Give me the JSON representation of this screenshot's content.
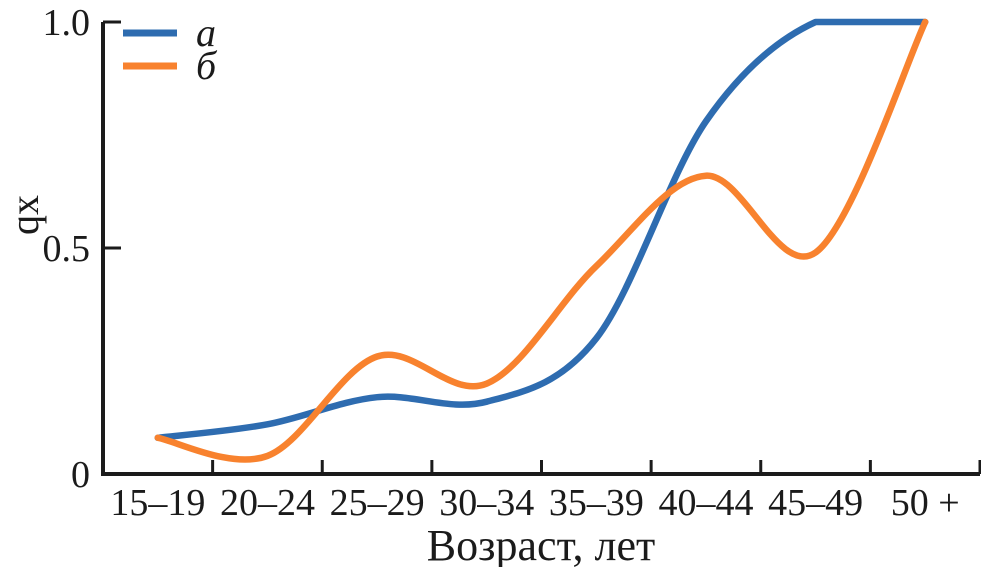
{
  "chart_data": {
    "type": "line",
    "title": "",
    "xlabel": "Возраст, лет",
    "ylabel": "qx",
    "categories": [
      "15–19",
      "20–24",
      "25–29",
      "30–34",
      "35–39",
      "40–44",
      "45–49",
      "50 +"
    ],
    "ylim": [
      0,
      1.0
    ],
    "y_ticks": [
      {
        "value": 0,
        "label": "0"
      },
      {
        "value": 0.5,
        "label": "0.5"
      },
      {
        "value": 1.0,
        "label": "1.0"
      }
    ],
    "grid": false,
    "legend_position": "upper-left",
    "series": [
      {
        "name": "a",
        "color": "#2e6cb0",
        "values": [
          0.08,
          0.11,
          0.17,
          0.16,
          0.3,
          0.78,
          1.0,
          1.0
        ]
      },
      {
        "name": "б",
        "color": "#f8822e",
        "values": [
          0.08,
          0.04,
          0.26,
          0.2,
          0.46,
          0.66,
          0.49,
          1.0
        ]
      }
    ],
    "line_smoothing": "spline",
    "axis_color": "#1b1b1b"
  }
}
